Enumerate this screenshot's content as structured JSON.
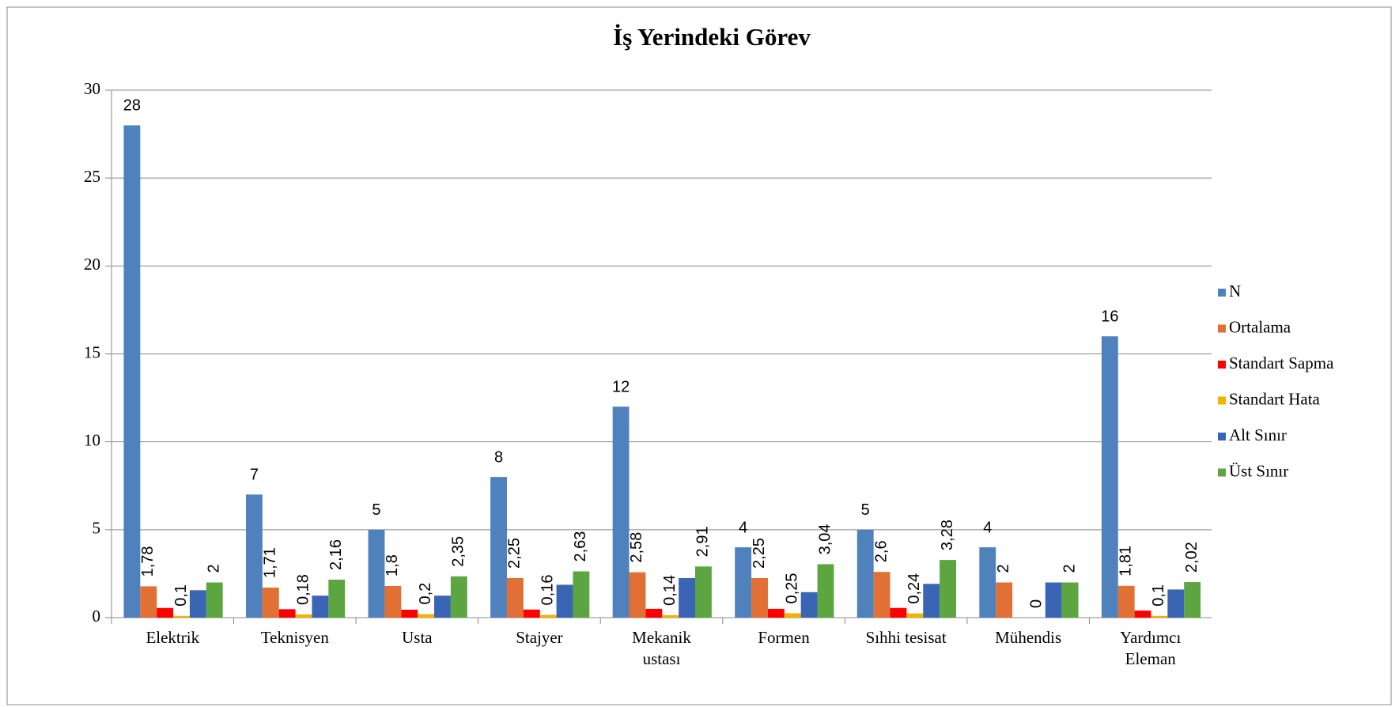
{
  "chart_data": {
    "type": "bar",
    "title": "İş Yerindeki Görev",
    "categories": [
      "Elektrik",
      "Teknisyen",
      "Usta",
      "Stajyer",
      "Mekanik ustası",
      "Formen",
      "Sıhhi tesisat",
      "Mühendis",
      "Yardımcı Eleman"
    ],
    "series": [
      {
        "name": "N",
        "color": "#4f81bd",
        "values": [
          28,
          7,
          5,
          8,
          12,
          4,
          5,
          4,
          16
        ]
      },
      {
        "name": "Ortalama",
        "color": "#e07033",
        "values": [
          1.78,
          1.71,
          1.8,
          2.25,
          2.58,
          2.25,
          2.6,
          2,
          1.81
        ],
        "value_labels": [
          "1,78",
          "1,71",
          "1,8",
          "2,25",
          "2,58",
          "2,25",
          "2,6",
          "2",
          "1,81"
        ]
      },
      {
        "name": "Standart Sapma",
        "color": "#ff0000",
        "values": [
          0.55,
          0.48,
          0.45,
          0.46,
          0.5,
          0.5,
          0.55,
          0,
          0.4
        ]
      },
      {
        "name": "Standart Hata",
        "color": "#f0b400",
        "values": [
          0.1,
          0.18,
          0.2,
          0.16,
          0.14,
          0.25,
          0.24,
          0,
          0.1
        ],
        "value_labels": [
          "0,1",
          "0,18",
          "0,2",
          "0,16",
          "0,14",
          "0,25",
          "0,24",
          "0",
          "0,1"
        ]
      },
      {
        "name": "Alt Sınır",
        "color": "#3a64b4",
        "values": [
          1.56,
          1.25,
          1.25,
          1.87,
          2.25,
          1.45,
          1.92,
          2,
          1.6
        ]
      },
      {
        "name": "Üst Sınır",
        "color": "#5ca541",
        "values": [
          2,
          2.16,
          2.35,
          2.63,
          2.91,
          3.04,
          3.28,
          2,
          2.02
        ],
        "value_labels": [
          "2",
          "2,16",
          "2,35",
          "2,63",
          "2,91",
          "3,04",
          "3,28",
          "2",
          "2,02"
        ]
      }
    ],
    "ylim": [
      0,
      30
    ],
    "yticks": [
      0,
      5,
      10,
      15,
      20,
      25,
      30
    ],
    "grid": true,
    "legend": "right"
  }
}
